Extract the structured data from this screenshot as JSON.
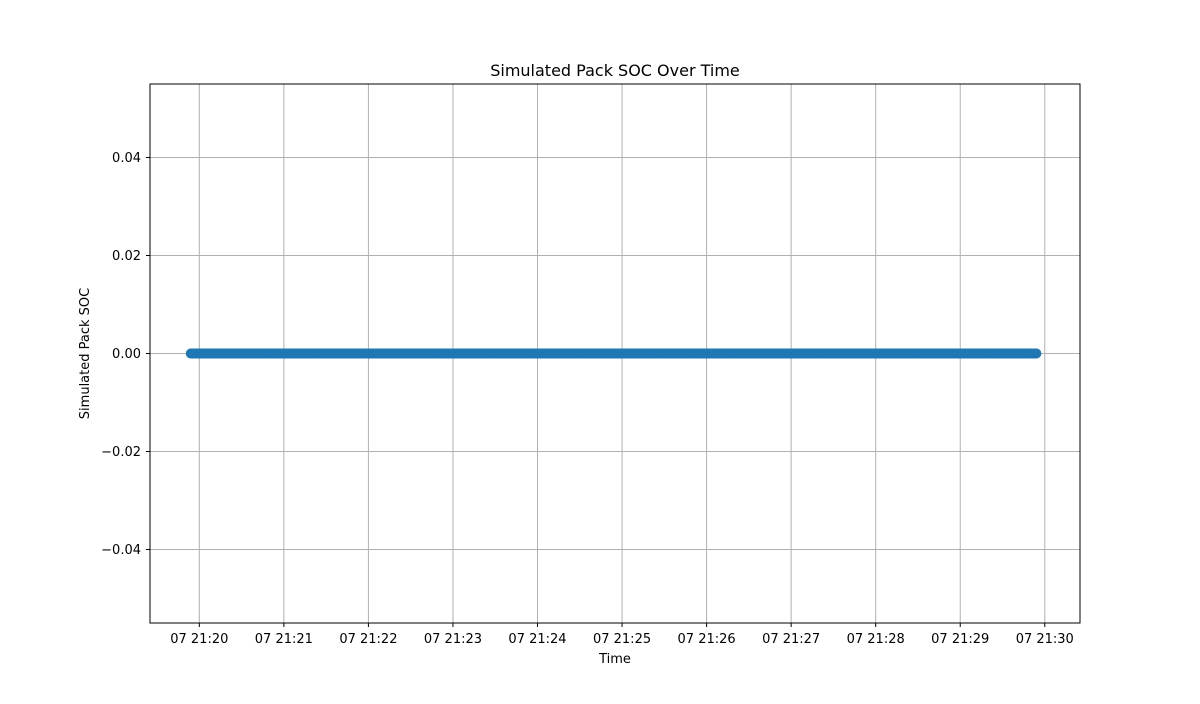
{
  "chart_data": {
    "type": "scatter",
    "title": "Simulated Pack SOC Over Time",
    "xlabel": "Time",
    "ylabel": "Simulated Pack SOC",
    "grid": true,
    "legend": "none",
    "x_ticks": [
      "07 21:20",
      "07 21:21",
      "07 21:22",
      "07 21:23",
      "07 21:24",
      "07 21:25",
      "07 21:26",
      "07 21:27",
      "07 21:28",
      "07 21:29",
      "07 21:30"
    ],
    "y_ticks": [
      -0.04,
      -0.02,
      0.0,
      0.02,
      0.04
    ],
    "y_tick_labels": [
      "−0.04",
      "−0.02",
      "0.00",
      "0.02",
      "0.04"
    ],
    "xlim": [
      "07 21:19:25",
      "07 21:30:25"
    ],
    "ylim": [
      -0.055,
      0.055
    ],
    "series": [
      {
        "color": "#1f77b4",
        "x_start": "07 21:19:54",
        "x_end": "07 21:29:54",
        "y": 0.0,
        "x": [
          "07 21:19:54",
          "07 21:20:24",
          "07 21:20:54",
          "07 21:21:24",
          "07 21:21:54",
          "07 21:22:24",
          "07 21:22:54",
          "07 21:23:24",
          "07 21:23:54",
          "07 21:24:24",
          "07 21:24:54",
          "07 21:25:24",
          "07 21:25:54",
          "07 21:26:24",
          "07 21:26:54",
          "07 21:27:24",
          "07 21:27:54",
          "07 21:28:24",
          "07 21:28:54",
          "07 21:29:24",
          "07 21:29:54"
        ],
        "values": [
          0,
          0,
          0,
          0,
          0,
          0,
          0,
          0,
          0,
          0,
          0,
          0,
          0,
          0,
          0,
          0,
          0,
          0,
          0,
          0,
          0
        ]
      }
    ]
  }
}
